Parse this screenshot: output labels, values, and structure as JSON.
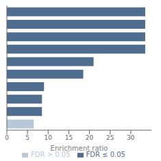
{
  "chart_data": {
    "type": "bar",
    "orientation": "horizontal",
    "xlabel": "Enrichment ratio",
    "categories": [
      null,
      null,
      null,
      null,
      null,
      null,
      null,
      null,
      null,
      null
    ],
    "series": [
      {
        "name": "FDR ≤ 0.05",
        "color": "#4f6d8f",
        "values": [
          33.5,
          33.5,
          33.5,
          33.5,
          21.0,
          18.5,
          9.0,
          8.5,
          8.5,
          null
        ]
      },
      {
        "name": "FDR > 0.05",
        "color": "#b8c8d8",
        "values": [
          null,
          null,
          null,
          null,
          null,
          null,
          null,
          null,
          null,
          6.5
        ]
      }
    ],
    "xlim": [
      0,
      35
    ],
    "xticks": [
      0,
      5,
      10,
      15,
      20,
      25,
      30
    ],
    "grid": false
  }
}
